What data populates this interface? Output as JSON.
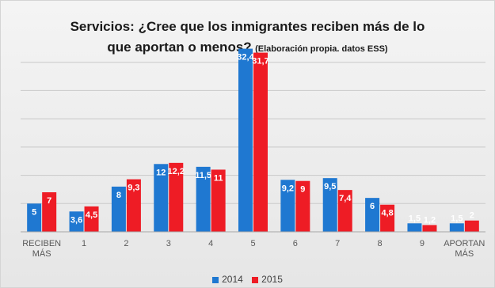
{
  "colors": {
    "s2014": "#1f78d1",
    "s2015": "#ee1c25",
    "grid": "#c9c9c9",
    "axis": "#a6a6a6",
    "tick_text": "#595959"
  },
  "chart_data": {
    "type": "bar",
    "title_line1": "Servicios: ¿Cree que los inmigrantes reciben más de lo",
    "title_line2": "que aportan o menos?",
    "subtitle": "(Elaboración propia. datos ESS)",
    "categories": [
      [
        "RECIBEN",
        "MÁS"
      ],
      [
        "1"
      ],
      [
        "2"
      ],
      [
        "3"
      ],
      [
        "4"
      ],
      [
        "5"
      ],
      [
        "6"
      ],
      [
        "7"
      ],
      [
        "8"
      ],
      [
        "9"
      ],
      [
        "APORTAN",
        "MÁS"
      ]
    ],
    "series": [
      {
        "name": "2014",
        "color_key": "s2014",
        "values": [
          5,
          3.6,
          8,
          12,
          11.5,
          32.4,
          9.2,
          9.5,
          6,
          1.5,
          1.5
        ],
        "labels": [
          "5",
          "3,6",
          "8",
          "12",
          "11,5",
          "32,4",
          "9,2",
          "9,5",
          "6",
          "1,5",
          "1,5"
        ]
      },
      {
        "name": "2015",
        "color_key": "s2015",
        "values": [
          7,
          4.5,
          9.3,
          12.2,
          11,
          31.7,
          9,
          7.4,
          4.8,
          1.2,
          2
        ],
        "labels": [
          "7",
          "4,5",
          "9,3",
          "12,2",
          "11",
          "31,7",
          "9",
          "7,4",
          "4,8",
          "1,2",
          "2"
        ]
      }
    ],
    "ylim": [
      0,
      35
    ],
    "grid": true,
    "legend_position": "bottom"
  }
}
